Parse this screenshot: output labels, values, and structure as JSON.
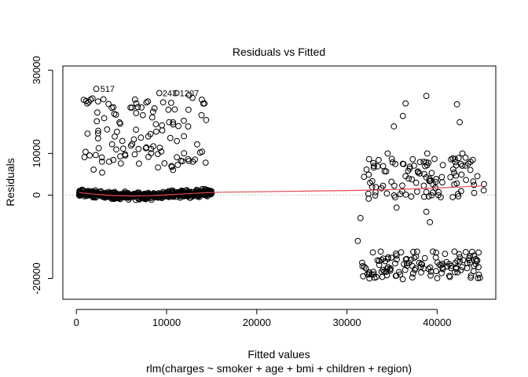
{
  "chart_data": {
    "type": "scatter",
    "title": "Residuals vs Fitted",
    "xlabel": "Fitted values",
    "ylabel": "Residuals",
    "subtitle": "rlm(charges ~ smoker + age + bmi + children + region)",
    "xlim": [
      -1500,
      46500
    ],
    "ylim": [
      -25000,
      31000
    ],
    "x_ticks": [
      0,
      10000,
      20000,
      30000,
      40000
    ],
    "y_ticks": [
      -20000,
      0,
      10000,
      30000
    ],
    "x_tick_labels": [
      "0",
      "10000",
      "20000",
      "30000",
      "40000"
    ],
    "y_tick_labels": [
      "-20000",
      "0",
      "10000",
      "30000"
    ],
    "grid": false,
    "reference_line": {
      "y": 0,
      "style": "dotted",
      "color": "#bbbbbb"
    },
    "smooth_line": {
      "color": "#e8474f",
      "points": [
        [
          300,
          600
        ],
        [
          2000,
          200
        ],
        [
          4000,
          -100
        ],
        [
          6000,
          -200
        ],
        [
          8000,
          -150
        ],
        [
          10000,
          50
        ],
        [
          12000,
          300
        ],
        [
          14000,
          550
        ],
        [
          16000,
          700
        ],
        [
          20000,
          800
        ],
        [
          25000,
          950
        ],
        [
          30000,
          1100
        ],
        [
          33000,
          1200
        ],
        [
          36000,
          1400
        ],
        [
          40000,
          1700
        ],
        [
          43000,
          2000
        ],
        [
          45000,
          2200
        ]
      ]
    },
    "annotations": [
      {
        "label": "517",
        "x": 2300,
        "y": 25500
      },
      {
        "label": "243",
        "x": 9200,
        "y": 24500
      },
      {
        "label": "1207",
        "x": 11100,
        "y": 24500
      }
    ],
    "point_groups": [
      {
        "name": "band-low",
        "count": 520,
        "x_range": [
          300,
          15000
        ],
        "y_center": "curve",
        "y_spread": 700
      },
      {
        "name": "upper-low",
        "count": 110,
        "x_range": [
          800,
          14500
        ],
        "y_range": [
          5000,
          23500
        ]
      },
      {
        "name": "upper-high",
        "count": 110,
        "x_range": [
          31800,
          45200
        ],
        "y_range": [
          -1000,
          9000
        ]
      },
      {
        "name": "lower-high",
        "count": 130,
        "x_range": [
          31500,
          44800
        ],
        "y_range": [
          -20200,
          -13500
        ]
      }
    ],
    "outliers": [
      [
        2200,
        25500
      ],
      [
        9200,
        24500
      ],
      [
        11100,
        24500
      ],
      [
        12500,
        24000
      ],
      [
        1200,
        22000
      ],
      [
        2400,
        22500
      ],
      [
        3000,
        23000
      ],
      [
        8500,
        20000
      ],
      [
        14200,
        22000
      ],
      [
        6000,
        21000
      ],
      [
        4200,
        19500
      ],
      [
        10200,
        20500
      ],
      [
        35200,
        16500
      ],
      [
        36200,
        19000
      ],
      [
        36500,
        22000
      ],
      [
        38800,
        23800
      ],
      [
        42200,
        21800
      ],
      [
        42500,
        17500
      ],
      [
        42800,
        10000
      ],
      [
        38900,
        10000
      ],
      [
        34500,
        10000
      ],
      [
        33000,
        7000
      ],
      [
        38500,
        8000
      ],
      [
        31500,
        -5500
      ],
      [
        31200,
        -11000
      ],
      [
        39200,
        -6500
      ],
      [
        38800,
        -4000
      ],
      [
        35500,
        -3000
      ]
    ]
  }
}
